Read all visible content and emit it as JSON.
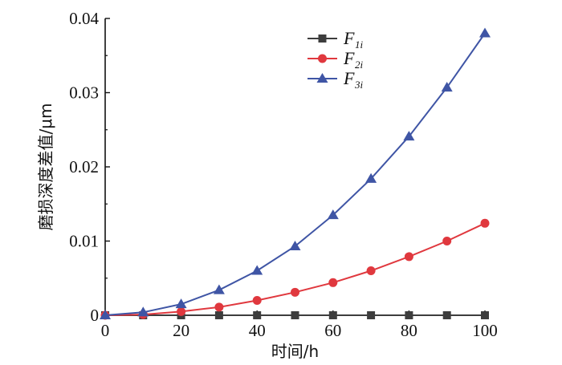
{
  "chart_data": {
    "type": "line",
    "title": "",
    "xlabel": "时间/h",
    "ylabel": "磨损深度差值/μm",
    "xlim": [
      0,
      100
    ],
    "ylim": [
      0,
      0.04
    ],
    "xticks": [
      0,
      20,
      40,
      60,
      80,
      100
    ],
    "yticks": [
      0,
      0.01,
      0.02,
      0.03,
      0.04
    ],
    "ytick_labels": [
      "0",
      "0.01",
      "0.02",
      "0.03",
      "0.04"
    ],
    "grid": false,
    "legend_position": "top-center",
    "x": [
      0,
      10,
      20,
      30,
      40,
      50,
      60,
      70,
      80,
      90,
      100
    ],
    "series": [
      {
        "name": "F",
        "subscript": "1i",
        "color": "#3d3d3d",
        "marker": "square",
        "values": [
          0,
          0,
          0,
          0,
          0,
          0,
          0,
          0,
          0,
          0,
          0
        ]
      },
      {
        "name": "F",
        "subscript": "2i",
        "color": "#e0383e",
        "marker": "circle",
        "values": [
          0,
          0.0001,
          0.0005,
          0.0011,
          0.002,
          0.0031,
          0.0044,
          0.006,
          0.0079,
          0.01,
          0.0124
        ]
      },
      {
        "name": "F",
        "subscript": "3i",
        "color": "#3f55a5",
        "marker": "triangle",
        "values": [
          0,
          0.0004,
          0.0015,
          0.0034,
          0.006,
          0.0093,
          0.0135,
          0.0184,
          0.0241,
          0.0307,
          0.038
        ]
      }
    ]
  }
}
